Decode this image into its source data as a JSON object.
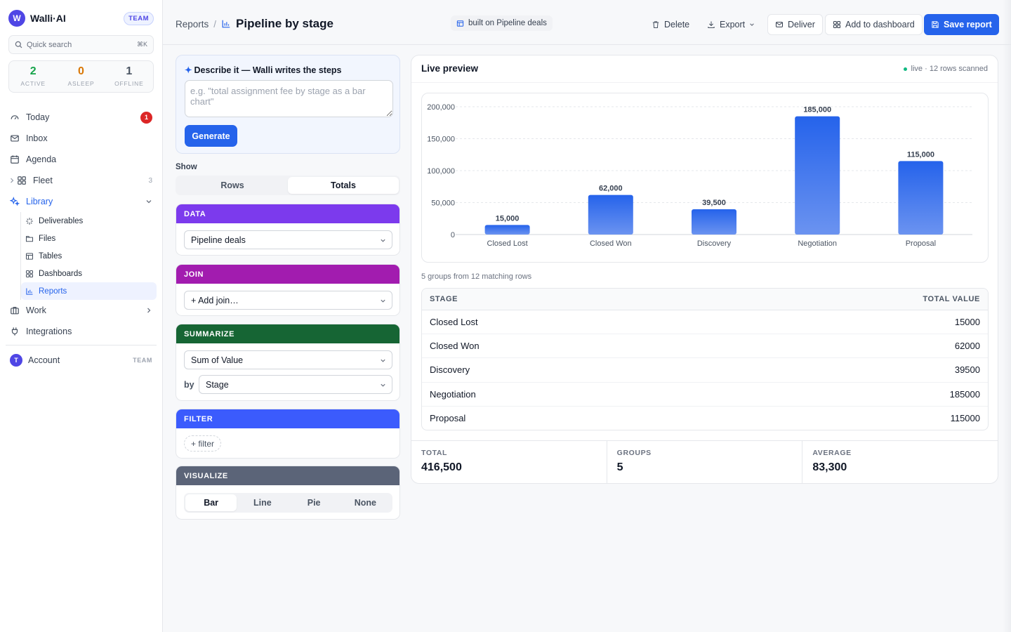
{
  "brand": {
    "logo_letter": "W",
    "name": "Walli·AI",
    "badge": "TEAM"
  },
  "quick_search": {
    "label": "Quick search",
    "shortcut": "⌘K"
  },
  "fleet_stats": [
    {
      "value": "2",
      "label": "ACTIVE",
      "color": "#16a34a"
    },
    {
      "value": "0",
      "label": "ASLEEP",
      "color": "#d97706"
    },
    {
      "value": "1",
      "label": "OFFLINE",
      "color": "#4b5563"
    }
  ],
  "nav": {
    "today": {
      "label": "Today",
      "badge": "1"
    },
    "inbox": {
      "label": "Inbox"
    },
    "agenda": {
      "label": "Agenda"
    },
    "fleet": {
      "label": "Fleet",
      "count": "3"
    },
    "library": {
      "label": "Library"
    },
    "library_items": [
      {
        "label": "Deliverables",
        "icon": "sparkle-icon"
      },
      {
        "label": "Files",
        "icon": "folder-icon"
      },
      {
        "label": "Tables",
        "icon": "table-icon"
      },
      {
        "label": "Dashboards",
        "icon": "dashboard-icon"
      },
      {
        "label": "Reports",
        "icon": "bar-chart-icon",
        "active": true
      }
    ],
    "work": {
      "label": "Work"
    },
    "integrations": {
      "label": "Integrations"
    },
    "account": {
      "label": "Account",
      "avatar": "T",
      "tag": "TEAM"
    }
  },
  "header": {
    "breadcrumb_parent": "Reports",
    "breadcrumb_sep": "/",
    "title": "Pipeline by stage",
    "built_on": "built on Pipeline deals",
    "delete_label": "Delete",
    "export_label": "Export",
    "deliver_label": "Deliver",
    "add_dashboard_label": "Add to dashboard",
    "save_label": "Save report"
  },
  "builder": {
    "describe_title": "Describe it — Walli writes the steps",
    "describe_spark": "✦",
    "describe_placeholder": "e.g. \"total assignment fee by stage as a bar chart\"",
    "generate_label": "Generate",
    "show_label": "Show",
    "show_options": [
      "Rows",
      "Totals"
    ],
    "show_selected": "Totals",
    "data": {
      "header": "DATA",
      "color": "#7c3aed",
      "source": "Pipeline deals"
    },
    "join": {
      "header": "JOIN",
      "color": "#a21caf",
      "value": "+ Add join…"
    },
    "summarize": {
      "header": "SUMMARIZE",
      "color": "#166534",
      "metric": "Sum of Value",
      "by_label": "by",
      "group_by": "Stage"
    },
    "filter": {
      "header": "FILTER",
      "color": "#3b5bfd",
      "add_label": "+ filter"
    },
    "visualize": {
      "header": "VISUALIZE",
      "color": "#5b6478",
      "options": [
        "Bar",
        "Line",
        "Pie",
        "None"
      ],
      "selected": "Bar"
    }
  },
  "preview": {
    "title": "Live preview",
    "status": "live · 12 rows scanned",
    "groups_note": "5 groups from 12 matching rows",
    "table": {
      "columns": [
        "STAGE",
        "TOTAL VALUE"
      ],
      "rows": [
        [
          "Closed Lost",
          "15000"
        ],
        [
          "Closed Won",
          "62000"
        ],
        [
          "Discovery",
          "39500"
        ],
        [
          "Negotiation",
          "185000"
        ],
        [
          "Proposal",
          "115000"
        ]
      ]
    },
    "summary": [
      {
        "label": "TOTAL",
        "value": "416,500"
      },
      {
        "label": "GROUPS",
        "value": "5"
      },
      {
        "label": "AVERAGE",
        "value": "83,300"
      }
    ]
  },
  "chart_data": {
    "type": "bar",
    "categories": [
      "Closed Lost",
      "Closed Won",
      "Discovery",
      "Negotiation",
      "Proposal"
    ],
    "values": [
      15000,
      62000,
      39500,
      185000,
      115000
    ],
    "value_labels": [
      "15,000",
      "62,000",
      "39,500",
      "185,000",
      "115,000"
    ],
    "ylim": [
      0,
      200000
    ],
    "y_ticks": [
      0,
      50000,
      100000,
      150000,
      200000
    ],
    "y_tick_labels": [
      "0",
      "50,000",
      "100,000",
      "150,000",
      "200,000"
    ],
    "title": "",
    "xlabel": "",
    "ylabel": "",
    "grid": true,
    "bar_color_top": "#2563eb",
    "bar_color_bottom": "#6b93f0"
  },
  "colors": {
    "accent": "#2563eb",
    "live_dot": "#10b981",
    "danger_badge": "#dc2626"
  }
}
